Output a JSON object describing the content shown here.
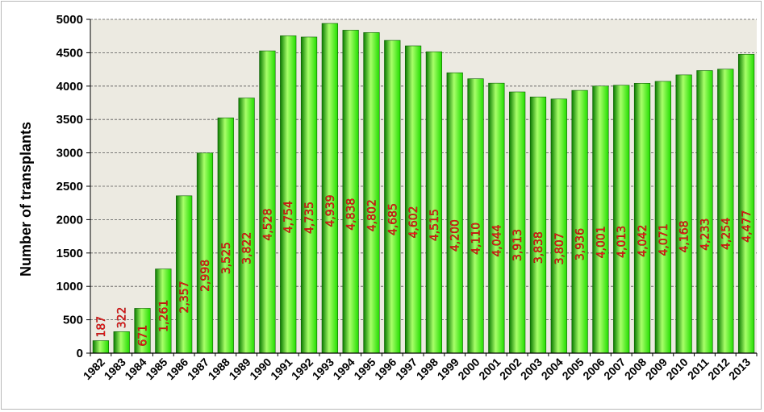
{
  "chart_data": {
    "type": "bar",
    "title": "",
    "xlabel": "",
    "ylabel": "Number of transplants",
    "ylim": [
      0,
      5000
    ],
    "yticks": [
      0,
      500,
      1000,
      1500,
      2000,
      2500,
      3000,
      3500,
      4000,
      4500,
      5000
    ],
    "grid": "horizontal-dashed",
    "legend": "none",
    "colors": {
      "bar": "#22dd00",
      "bar_light": "#a8ff6a",
      "bar_dark": "#0a7a00",
      "plot_background": "#eceae1",
      "gridline": "#555555",
      "data_label": "#ff1a1a"
    },
    "categories": [
      "1982",
      "1983",
      "1984",
      "1985",
      "1986",
      "1987",
      "1988",
      "1989",
      "1990",
      "1991",
      "1992",
      "1993",
      "1994",
      "1995",
      "1996",
      "1997",
      "1998",
      "1999",
      "2000",
      "2001",
      "2002",
      "2003",
      "2004",
      "2005",
      "2006",
      "2007",
      "2008",
      "2009",
      "2010",
      "2011",
      "2012",
      "2013"
    ],
    "values": [
      187,
      322,
      671,
      1261,
      2357,
      2998,
      3525,
      3822,
      4528,
      4754,
      4735,
      4939,
      4838,
      4802,
      4685,
      4602,
      4515,
      4200,
      4110,
      4044,
      3913,
      3838,
      3807,
      3936,
      4001,
      4013,
      4042,
      4071,
      4168,
      4233,
      4254,
      4477
    ],
    "value_labels": [
      "187",
      "322",
      "671",
      "1,261",
      "2,357",
      "2,998",
      "3,525",
      "3,822",
      "4,528",
      "4,754",
      "4,735",
      "4,939",
      "4,838",
      "4,802",
      "4,685",
      "4,602",
      "4,515",
      "4,200",
      "4,110",
      "4,044",
      "3,913",
      "3,838",
      "3,807",
      "3,936",
      "4,001",
      "4,013",
      "4,042",
      "4,071",
      "4,168",
      "4,233",
      "4,254",
      "4,477"
    ]
  }
}
